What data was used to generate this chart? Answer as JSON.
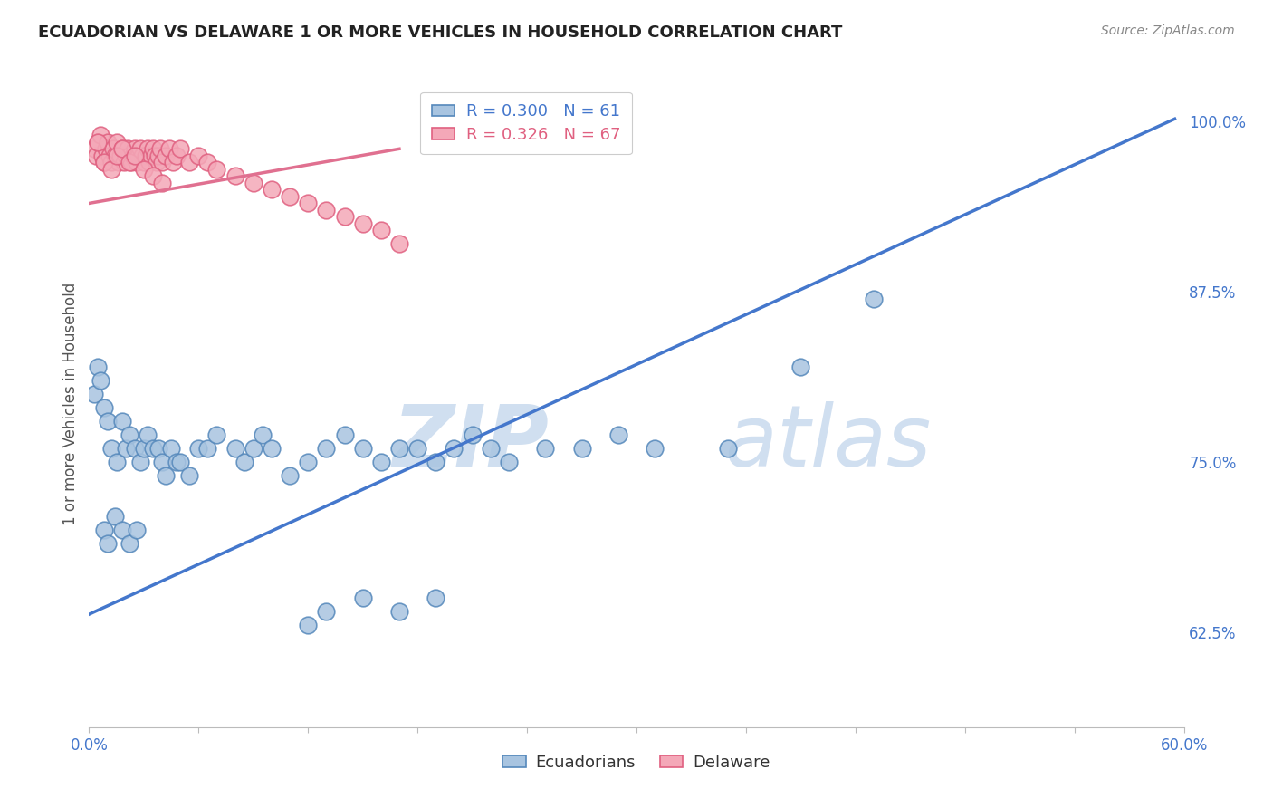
{
  "title": "ECUADORIAN VS DELAWARE 1 OR MORE VEHICLES IN HOUSEHOLD CORRELATION CHART",
  "source": "Source: ZipAtlas.com",
  "xlabel_blue": "Ecuadorians",
  "xlabel_pink": "Delaware",
  "ylabel": "1 or more Vehicles in Household",
  "xmin": 0.0,
  "xmax": 0.6,
  "ymin": 0.555,
  "ymax": 1.03,
  "yticks": [
    0.625,
    0.75,
    0.875,
    1.0
  ],
  "ytick_labels": [
    "62.5%",
    "75.0%",
    "87.5%",
    "100.0%"
  ],
  "xticks": [
    0.0,
    0.06,
    0.12,
    0.18,
    0.24,
    0.3,
    0.36,
    0.42,
    0.48,
    0.54,
    0.6
  ],
  "xtick_labels": [
    "0.0%",
    "",
    "",
    "",
    "",
    "",
    "",
    "",
    "",
    "",
    "60.0%"
  ],
  "legend_blue_R": "R = 0.300",
  "legend_blue_N": "N = 61",
  "legend_pink_R": "R = 0.326",
  "legend_pink_N": "N = 67",
  "blue_color": "#A8C4E0",
  "pink_color": "#F4A8B8",
  "blue_edge_color": "#5588BB",
  "pink_edge_color": "#E06080",
  "blue_line_color": "#4477CC",
  "pink_line_color": "#E07090",
  "watermark_color": "#D0DFF0",
  "blue_scatter_x": [
    0.003,
    0.005,
    0.006,
    0.008,
    0.01,
    0.012,
    0.015,
    0.018,
    0.02,
    0.022,
    0.025,
    0.028,
    0.03,
    0.032,
    0.035,
    0.038,
    0.04,
    0.042,
    0.045,
    0.048,
    0.05,
    0.055,
    0.06,
    0.065,
    0.07,
    0.08,
    0.085,
    0.09,
    0.095,
    0.1,
    0.11,
    0.12,
    0.13,
    0.14,
    0.15,
    0.16,
    0.17,
    0.18,
    0.19,
    0.2,
    0.21,
    0.22,
    0.23,
    0.25,
    0.27,
    0.29,
    0.31,
    0.35,
    0.39,
    0.43,
    0.12,
    0.13,
    0.15,
    0.17,
    0.19,
    0.008,
    0.01,
    0.014,
    0.018,
    0.022,
    0.026
  ],
  "blue_scatter_y": [
    0.8,
    0.82,
    0.81,
    0.79,
    0.78,
    0.76,
    0.75,
    0.78,
    0.76,
    0.77,
    0.76,
    0.75,
    0.76,
    0.77,
    0.76,
    0.76,
    0.75,
    0.74,
    0.76,
    0.75,
    0.75,
    0.74,
    0.76,
    0.76,
    0.77,
    0.76,
    0.75,
    0.76,
    0.77,
    0.76,
    0.74,
    0.75,
    0.76,
    0.77,
    0.76,
    0.75,
    0.76,
    0.76,
    0.75,
    0.76,
    0.77,
    0.76,
    0.75,
    0.76,
    0.76,
    0.77,
    0.76,
    0.76,
    0.82,
    0.87,
    0.63,
    0.64,
    0.65,
    0.64,
    0.65,
    0.7,
    0.69,
    0.71,
    0.7,
    0.69,
    0.7
  ],
  "pink_scatter_x": [
    0.003,
    0.004,
    0.005,
    0.006,
    0.007,
    0.008,
    0.009,
    0.01,
    0.011,
    0.012,
    0.013,
    0.014,
    0.015,
    0.016,
    0.017,
    0.018,
    0.019,
    0.02,
    0.021,
    0.022,
    0.023,
    0.024,
    0.025,
    0.026,
    0.027,
    0.028,
    0.029,
    0.03,
    0.031,
    0.032,
    0.033,
    0.034,
    0.035,
    0.036,
    0.037,
    0.038,
    0.039,
    0.04,
    0.042,
    0.044,
    0.046,
    0.048,
    0.05,
    0.055,
    0.06,
    0.065,
    0.07,
    0.08,
    0.09,
    0.1,
    0.11,
    0.12,
    0.13,
    0.14,
    0.15,
    0.16,
    0.17,
    0.005,
    0.008,
    0.012,
    0.015,
    0.018,
    0.022,
    0.025,
    0.03,
    0.035,
    0.04
  ],
  "pink_scatter_y": [
    0.98,
    0.975,
    0.985,
    0.99,
    0.975,
    0.97,
    0.98,
    0.985,
    0.975,
    0.97,
    0.98,
    0.975,
    0.985,
    0.97,
    0.975,
    0.98,
    0.97,
    0.975,
    0.98,
    0.975,
    0.97,
    0.975,
    0.98,
    0.97,
    0.975,
    0.98,
    0.975,
    0.97,
    0.975,
    0.98,
    0.97,
    0.975,
    0.98,
    0.975,
    0.97,
    0.975,
    0.98,
    0.97,
    0.975,
    0.98,
    0.97,
    0.975,
    0.98,
    0.97,
    0.975,
    0.97,
    0.965,
    0.96,
    0.955,
    0.95,
    0.945,
    0.94,
    0.935,
    0.93,
    0.925,
    0.92,
    0.91,
    0.985,
    0.97,
    0.965,
    0.975,
    0.98,
    0.97,
    0.975,
    0.965,
    0.96,
    0.955
  ],
  "blue_trend_x": [
    0.0,
    0.595
  ],
  "blue_trend_y": [
    0.638,
    1.002
  ],
  "pink_trend_x": [
    0.0,
    0.17
  ],
  "pink_trend_y": [
    0.94,
    0.98
  ]
}
